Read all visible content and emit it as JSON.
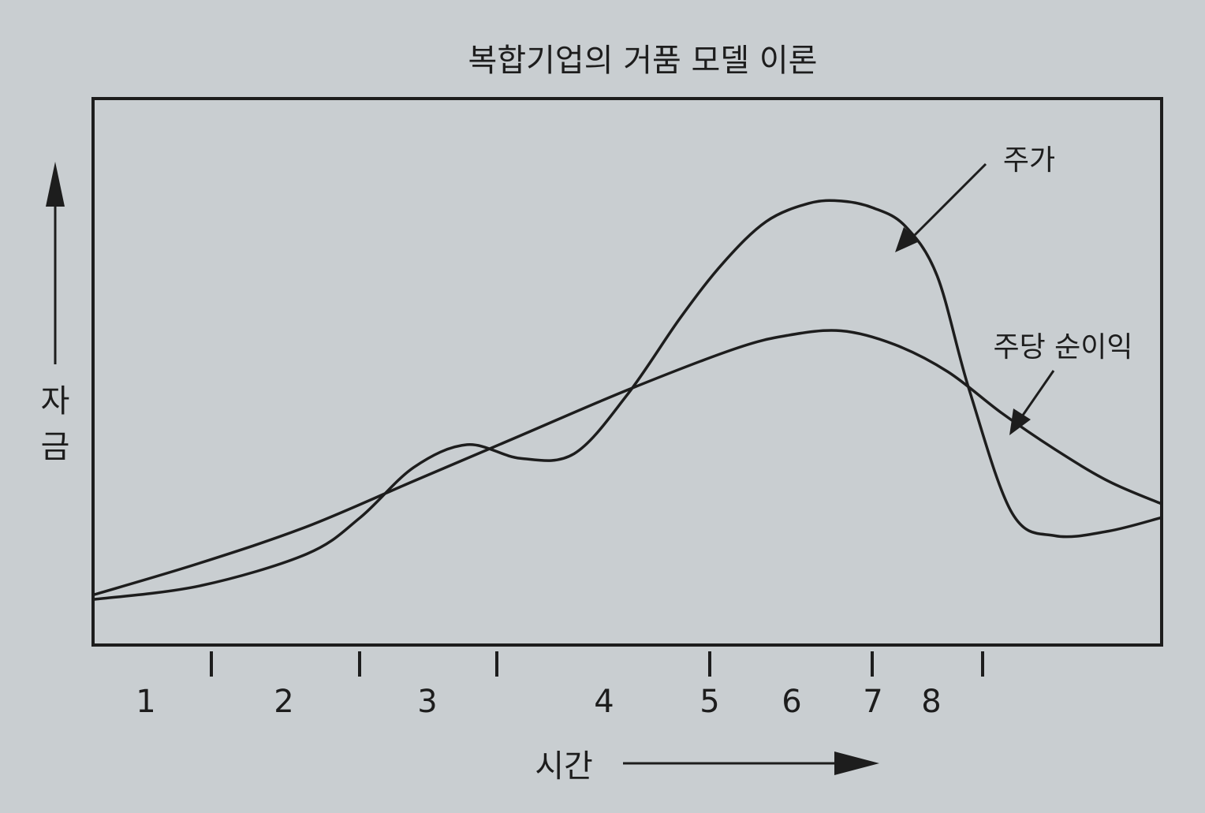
{
  "colors": {
    "background": "#c9ced1",
    "ink": "#1d1d1d"
  },
  "chart_data": {
    "type": "line",
    "title": "복합기업의 거품 모델 이론",
    "xlabel": "시간",
    "ylabel": "자금",
    "x_tick_labels": [
      "1",
      "2",
      "3",
      "4",
      "5",
      "6",
      "7",
      "8"
    ],
    "grid": false,
    "y_axis_values": "none",
    "series": [
      {
        "name": "주가",
        "x": [
          0,
          1,
          2,
          2.5,
          3,
          3.5,
          4,
          4.5,
          5,
          5.5,
          5.9,
          6.3,
          6.7,
          7.0,
          7.3,
          7.6,
          7.9,
          8.2,
          8.6,
          9.0,
          9.5,
          10.0
        ],
        "y": [
          1.0,
          1.3,
          2.0,
          2.8,
          3.9,
          4.4,
          4.1,
          4.2,
          5.5,
          7.2,
          8.4,
          9.3,
          9.7,
          9.75,
          9.6,
          9.2,
          8.1,
          5.6,
          2.9,
          2.4,
          2.5,
          2.8
        ]
      },
      {
        "name": "주당 순이익",
        "x": [
          0,
          1,
          2,
          3,
          4,
          5,
          6,
          6.5,
          7.0,
          7.5,
          8.0,
          8.5,
          9.0,
          9.5,
          10.0
        ],
        "y": [
          1.1,
          1.8,
          2.6,
          3.6,
          4.6,
          5.6,
          6.5,
          6.8,
          6.9,
          6.6,
          6.0,
          5.1,
          4.3,
          3.6,
          3.1
        ]
      }
    ],
    "xlim": [
      0,
      10
    ],
    "ylim": [
      0,
      12
    ],
    "annotations": [
      {
        "text": "주가",
        "target": "주가"
      },
      {
        "text": "주당 순이익",
        "target": "주당 순이익"
      }
    ]
  }
}
